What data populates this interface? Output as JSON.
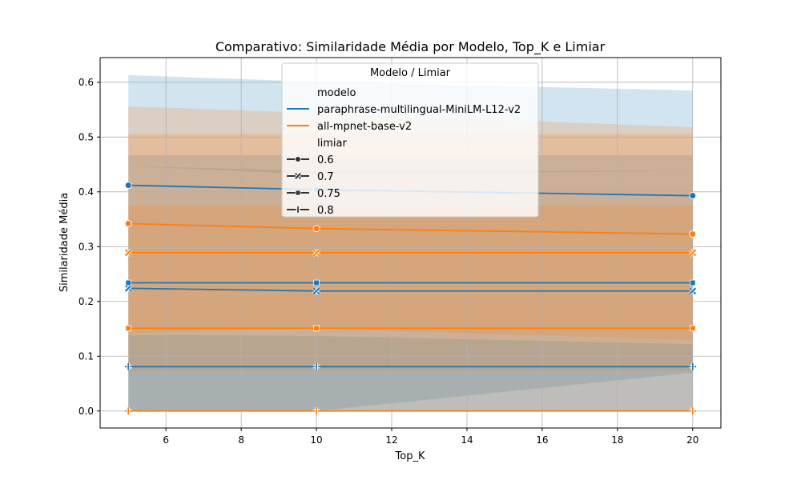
{
  "chart_data": {
    "type": "line",
    "title": "Comparativo: Similaridade Média por Modelo, Top_K e Limiar",
    "xlabel": "Top_K",
    "ylabel": "Similaridade Média",
    "xlim": [
      4.25,
      20.75
    ],
    "ylim": [
      -0.031,
      0.645
    ],
    "x_ticks": [
      6,
      8,
      10,
      12,
      14,
      16,
      18,
      20
    ],
    "y_ticks": [
      0.0,
      0.1,
      0.2,
      0.3,
      0.4,
      0.5,
      0.6
    ],
    "grid": true,
    "x": [
      5,
      10,
      20
    ],
    "legend": {
      "title": "Modelo / Limiar",
      "placement": "upper center",
      "hue_title": "modelo",
      "style_title": "limiar",
      "marker_labels": [
        "0.6",
        "0.7",
        "0.75",
        "0.8"
      ]
    },
    "colors": {
      "paraphrase-multilingual-MiniLM-L12-v2": "#1f77b4",
      "all-mpnet-base-v2": "#ff7f0e"
    },
    "series": [
      {
        "modelo": "paraphrase-multilingual-MiniLM-L12-v2",
        "limiar": "0.6",
        "marker": "circle",
        "values": [
          0.412,
          0.404,
          0.393
        ],
        "ci_low": [
          0.447,
          0.432,
          0.438
        ],
        "ci_high": [
          0.613,
          0.601,
          0.585
        ]
      },
      {
        "modelo": "paraphrase-multilingual-MiniLM-L12-v2",
        "limiar": "0.7",
        "marker": "x",
        "values": [
          0.224,
          0.219,
          0.219
        ],
        "ci_low": [
          0.0,
          0.0,
          0.0
        ],
        "ci_high": [
          0.447,
          0.438,
          0.438
        ]
      },
      {
        "modelo": "paraphrase-multilingual-MiniLM-L12-v2",
        "limiar": "0.75",
        "marker": "square",
        "values": [
          0.234,
          0.234,
          0.234
        ],
        "ci_low": [
          0.0,
          0.0,
          0.0
        ],
        "ci_high": [
          0.467,
          0.467,
          0.467
        ]
      },
      {
        "modelo": "paraphrase-multilingual-MiniLM-L12-v2",
        "limiar": "0.8",
        "marker": "plus",
        "values": [
          0.081,
          0.081,
          0.081
        ],
        "ci_low": [
          0.0,
          0.0,
          0.07
        ],
        "ci_high": [
          0.139,
          0.137,
          0.122
        ]
      },
      {
        "modelo": "all-mpnet-base-v2",
        "limiar": "0.6",
        "marker": "circle",
        "values": [
          0.342,
          0.333,
          0.323
        ],
        "ci_low": [
          0.142,
          0.15,
          0.13
        ],
        "ci_high": [
          0.556,
          0.544,
          0.518
        ]
      },
      {
        "modelo": "all-mpnet-base-v2",
        "limiar": "0.7",
        "marker": "x",
        "values": [
          0.289,
          0.289,
          0.289
        ],
        "ci_low": [
          0.073,
          0.073,
          0.073
        ],
        "ci_high": [
          0.506,
          0.506,
          0.506
        ]
      },
      {
        "modelo": "all-mpnet-base-v2",
        "limiar": "0.75",
        "marker": "square",
        "values": [
          0.151,
          0.151,
          0.151
        ],
        "ci_low": [
          0.0,
          0.0,
          0.0
        ],
        "ci_high": [
          0.376,
          0.376,
          0.376
        ]
      },
      {
        "modelo": "all-mpnet-base-v2",
        "limiar": "0.8",
        "marker": "plus",
        "values": [
          0.0,
          0.0,
          0.0
        ],
        "ci_low": [
          0.0,
          0.0,
          0.0
        ],
        "ci_high": [
          0.0,
          0.0,
          0.0
        ]
      }
    ]
  }
}
